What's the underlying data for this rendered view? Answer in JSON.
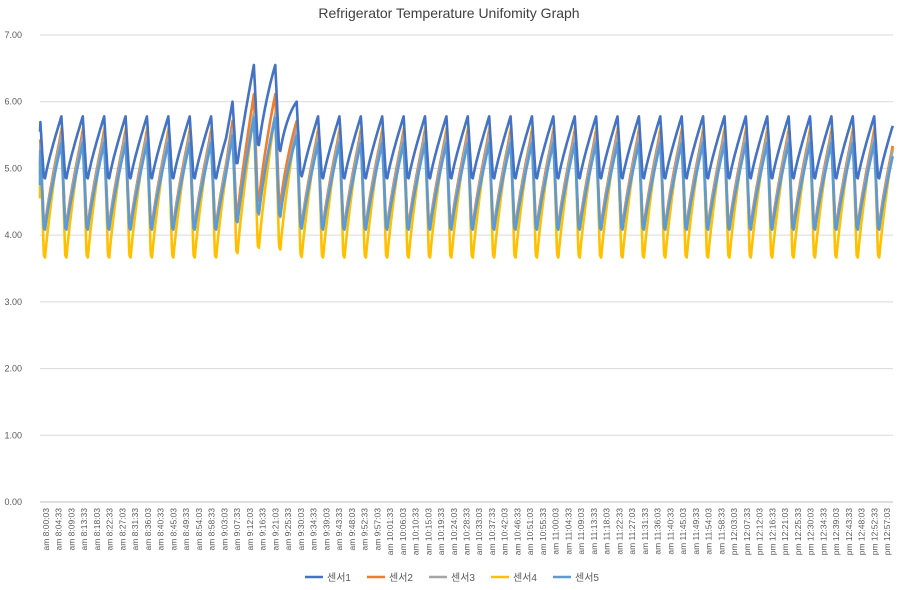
{
  "chart_data": {
    "type": "line",
    "title": "Refrigerator Temperature Unifomity Graph",
    "xlabel": "",
    "ylabel": "",
    "ylim": [
      0,
      7
    ],
    "y_ticks": [
      "0.00",
      "1.00",
      "2.00",
      "3.00",
      "4.00",
      "5.00",
      "6.00",
      "7.00"
    ],
    "x_tick_labels": [
      "am 8:00:03",
      "am 8:04:33",
      "am 8:09:03",
      "am 8:13:33",
      "am 8:18:03",
      "am 8:22:33",
      "am 8:27:03",
      "am 8:31:33",
      "am 8:36:03",
      "am 8:40:33",
      "am 8:45:03",
      "am 8:49:33",
      "am 8:54:03",
      "am 8:58:33",
      "am 9:03:03",
      "am 9:07:33",
      "am 9:12:03",
      "am 9:16:33",
      "am 9:21:03",
      "am 9:25:33",
      "am 9:30:03",
      "am 9:34:33",
      "am 9:39:03",
      "am 9:43:33",
      "am 9:48:03",
      "am 9:52:33",
      "am 9:57:03",
      "am 10:01:33",
      "am 10:06:03",
      "am 10:10:33",
      "am 10:15:03",
      "am 10:19:33",
      "am 10:24:03",
      "am 10:28:33",
      "am 10:33:03",
      "am 10:37:33",
      "am 10:42:03",
      "am 10:46:33",
      "am 10:51:03",
      "am 10:55:33",
      "am 11:00:03",
      "am 11:04:33",
      "am 11:09:03",
      "am 11:13:33",
      "am 11:18:03",
      "am 11:22:33",
      "am 11:27:03",
      "am 11:31:33",
      "am 11:36:03",
      "am 11:40:33",
      "am 11:45:03",
      "am 11:49:33",
      "am 11:54:03",
      "am 11:58:33",
      "pm 12:03:03",
      "pm 12:07:33",
      "pm 12:12:03",
      "pm 12:16:33",
      "pm 12:21:03",
      "pm 12:25:33",
      "pm 12:30:03",
      "pm 12:34:33",
      "pm 12:39:03",
      "pm 12:43:33",
      "pm 12:48:03",
      "pm 12:52:33",
      "pm 12:57:03"
    ],
    "cycles": 40,
    "series": [
      {
        "name": "센서1",
        "color": "#4472C4",
        "low": 4.85,
        "high": 5.78,
        "start": 5.55
      },
      {
        "name": "센서2",
        "color": "#ED7D31",
        "low": 4.15,
        "high": 5.55,
        "start": 5.05
      },
      {
        "name": "센서3",
        "color": "#A5A5A5",
        "low": 4.1,
        "high": 5.5,
        "start": 4.9
      },
      {
        "name": "센서4",
        "color": "#FFC000",
        "low": 3.66,
        "high": 5.6,
        "start": 4.55
      },
      {
        "name": "센서5",
        "color": "#5B9BD5",
        "low": 4.08,
        "high": 5.38,
        "start": 4.75
      }
    ],
    "disturbance": {
      "center_cycle": 10.5,
      "peaks": {
        "센서1": 6.63,
        "센서2": 6.17,
        "센서3": 5.85,
        "센서4": 5.85,
        "센서5": 5.8
      }
    },
    "grid": true,
    "legend": "bottom"
  }
}
